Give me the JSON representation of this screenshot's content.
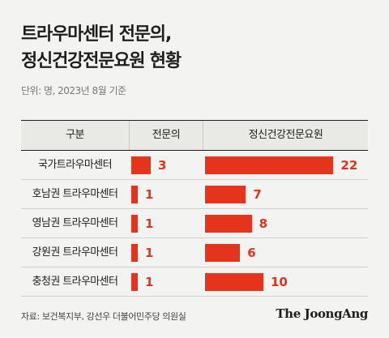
{
  "title_lines": [
    "트라우마센터 전문의,",
    "정신건강전문요원 현황"
  ],
  "unit": "단위: 명, 2023년 8월 기준",
  "headers": {
    "category": "구분",
    "col1": "전문의",
    "col2": "정신건강전문요원"
  },
  "chart_data": {
    "type": "bar",
    "categories": [
      "국가트라우마센터",
      "호남권 트라우마센터",
      "영남권 트라우마센터",
      "강원권 트라우마센터",
      "충청권 트라우마센터"
    ],
    "series": [
      {
        "name": "전문의",
        "values": [
          3,
          1,
          1,
          1,
          1
        ]
      },
      {
        "name": "정신건강전문요원",
        "values": [
          22,
          7,
          8,
          6,
          10
        ]
      }
    ]
  },
  "source": "자료: 보건복지부, 강선우 더불어민주당 의원실",
  "logo": "The JoongAng",
  "accent_color": "#e5331c"
}
